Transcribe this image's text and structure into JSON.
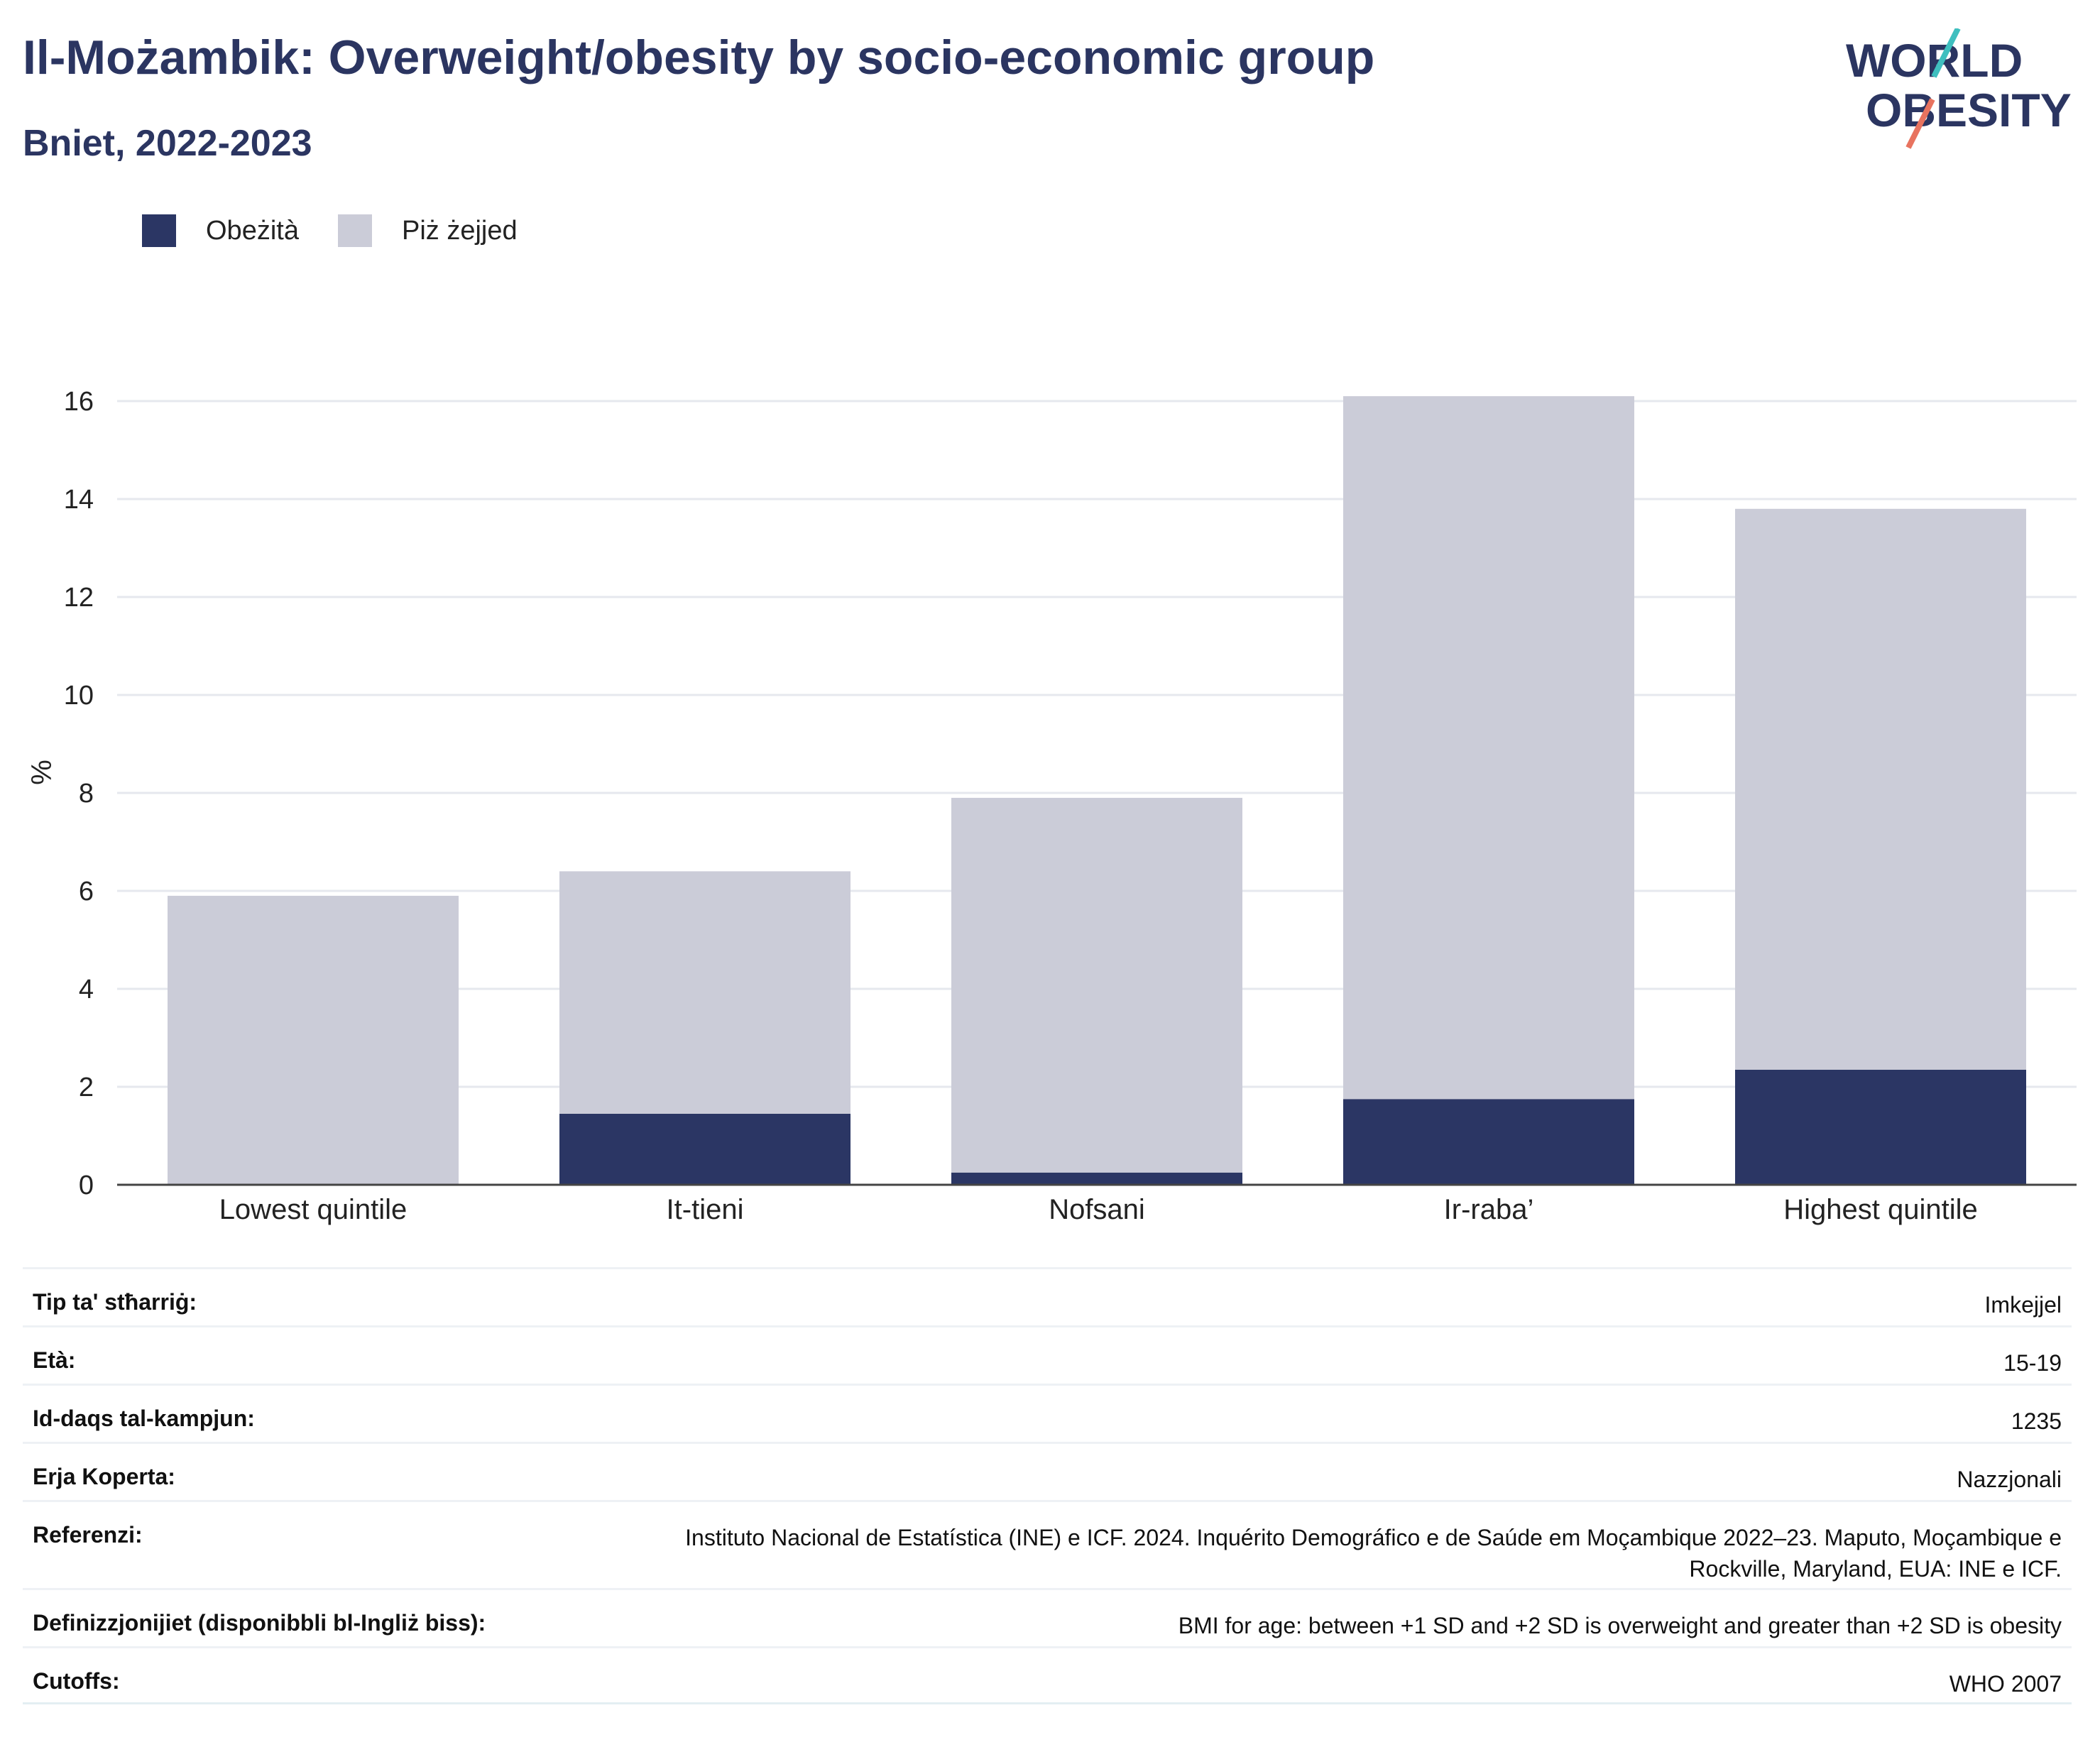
{
  "header": {
    "title": "Il-Możambik: Overweight/obesity by socio-economic group",
    "subtitle": "Bniet, 2022-2023"
  },
  "logo": {
    "line1": "WORLD",
    "line2": "OBESITY"
  },
  "legend": [
    {
      "label": "Obeżità",
      "color": "#2b3664"
    },
    {
      "label": "Piż żejjed",
      "color": "#cbccd8"
    }
  ],
  "chart_data": {
    "type": "bar",
    "stacked": true,
    "categories": [
      "Lowest quintile",
      "It-tieni",
      "Nofsani",
      "Ir-raba’",
      "Highest quintile"
    ],
    "series": [
      {
        "name": "Obeżità",
        "color": "#2b3664",
        "values": [
          0.0,
          1.45,
          0.25,
          1.75,
          2.35
        ]
      },
      {
        "name": "Piż żejjed",
        "color": "#cbccd8",
        "values": [
          5.9,
          4.95,
          7.65,
          14.35,
          11.45
        ]
      }
    ],
    "ylabel": "%",
    "ylim": [
      0,
      16
    ],
    "yticks": [
      0,
      2,
      4,
      6,
      8,
      10,
      12,
      14,
      16
    ],
    "grid": true
  },
  "info_table": [
    {
      "key": "Tip ta' stħarriġ:",
      "value": "Imkejjel"
    },
    {
      "key": "Età:",
      "value": "15-19"
    },
    {
      "key": "Id-daqs tal-kampjun:",
      "value": "1235"
    },
    {
      "key": "Erja Koperta:",
      "value": "Nazzjonali"
    },
    {
      "key": "Referenzi:",
      "value": "Instituto Nacional de Estatística (INE) e ICF. 2024. Inquérito Demográfico e de Saúde em Moçambique 2022–23. Maputo, Moçambique e Rockville, Maryland, EUA: INE e ICF."
    },
    {
      "key": "Definizzjonijiet (disponibbli bl-Ingliż biss):",
      "value": "BMI for age: between +1 SD and +2 SD is overweight and greater than +2 SD is obesity"
    },
    {
      "key": "Cutoffs:",
      "value": "WHO 2007"
    }
  ]
}
